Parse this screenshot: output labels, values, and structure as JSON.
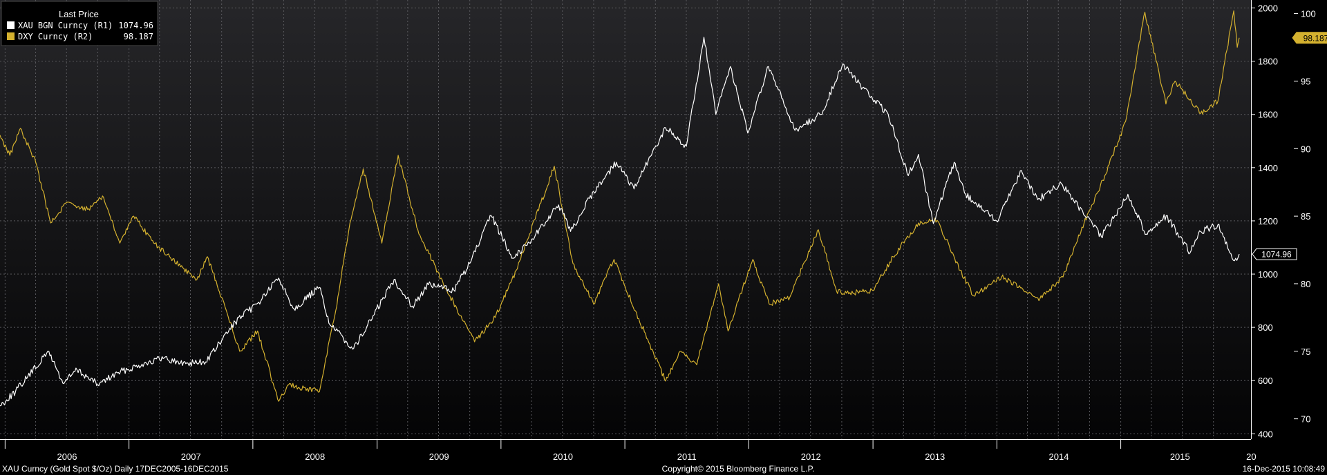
{
  "chart_data": {
    "type": "line",
    "legend": {
      "title": "Last Price",
      "placement": "top-left",
      "entries": [
        {
          "label": "XAU BGN Curncy  (R1)",
          "value": "1074.96",
          "color": "#ffffff"
        },
        {
          "label": "DXY Curncy  (R2)",
          "value": "98.187",
          "color": "#d4b12f"
        }
      ]
    },
    "x_axis": {
      "range": [
        "2005-12-17",
        "2015-12-16"
      ],
      "tick_labels": [
        "2006",
        "2007",
        "2008",
        "2009",
        "2010",
        "2011",
        "2012",
        "2013",
        "2014",
        "2015",
        "20"
      ]
    },
    "y_axis_r1": {
      "range": [
        380,
        2030
      ],
      "ticks": [
        400,
        600,
        800,
        1000,
        1200,
        1400,
        1600,
        1800,
        2000
      ]
    },
    "y_axis_r2": {
      "range": [
        68.5,
        101
      ],
      "ticks": [
        70,
        75,
        80,
        85,
        90,
        95,
        100
      ]
    },
    "grid": true,
    "series": [
      {
        "name": "XAU BGN Curncy",
        "axis": "R1",
        "color": "#ffffff",
        "last_value_label": "1074.96",
        "points": [
          [
            "2005-12-17",
            505
          ],
          [
            "2006-02-01",
            560
          ],
          [
            "2006-05-10",
            710
          ],
          [
            "2006-06-20",
            590
          ],
          [
            "2006-08-01",
            640
          ],
          [
            "2006-10-01",
            585
          ],
          [
            "2006-12-01",
            630
          ],
          [
            "2007-02-15",
            665
          ],
          [
            "2007-04-15",
            685
          ],
          [
            "2007-06-01",
            665
          ],
          [
            "2007-08-15",
            670
          ],
          [
            "2007-10-01",
            750
          ],
          [
            "2007-11-10",
            820
          ],
          [
            "2008-01-15",
            890
          ],
          [
            "2008-03-17",
            985
          ],
          [
            "2008-05-01",
            870
          ],
          [
            "2008-07-15",
            950
          ],
          [
            "2008-08-15",
            810
          ],
          [
            "2008-10-24",
            720
          ],
          [
            "2008-12-01",
            800
          ],
          [
            "2009-02-20",
            980
          ],
          [
            "2009-04-15",
            880
          ],
          [
            "2009-06-01",
            960
          ],
          [
            "2009-08-15",
            940
          ],
          [
            "2009-10-01",
            1040
          ],
          [
            "2009-12-03",
            1220
          ],
          [
            "2010-02-05",
            1060
          ],
          [
            "2010-04-01",
            1130
          ],
          [
            "2010-06-20",
            1260
          ],
          [
            "2010-07-25",
            1160
          ],
          [
            "2010-10-01",
            1310
          ],
          [
            "2010-12-07",
            1420
          ],
          [
            "2011-01-28",
            1320
          ],
          [
            "2011-05-01",
            1550
          ],
          [
            "2011-07-01",
            1480
          ],
          [
            "2011-08-22",
            1890
          ],
          [
            "2011-09-26",
            1600
          ],
          [
            "2011-11-08",
            1780
          ],
          [
            "2011-12-29",
            1530
          ],
          [
            "2012-02-28",
            1780
          ],
          [
            "2012-05-16",
            1540
          ],
          [
            "2012-08-01",
            1600
          ],
          [
            "2012-10-04",
            1790
          ],
          [
            "2012-12-01",
            1700
          ],
          [
            "2013-02-15",
            1600
          ],
          [
            "2013-04-15",
            1370
          ],
          [
            "2013-05-15",
            1450
          ],
          [
            "2013-06-28",
            1190
          ],
          [
            "2013-08-28",
            1420
          ],
          [
            "2013-10-01",
            1300
          ],
          [
            "2013-12-31",
            1200
          ],
          [
            "2014-03-14",
            1390
          ],
          [
            "2014-05-01",
            1280
          ],
          [
            "2014-07-10",
            1340
          ],
          [
            "2014-11-05",
            1140
          ],
          [
            "2015-01-22",
            1300
          ],
          [
            "2015-03-17",
            1150
          ],
          [
            "2015-05-15",
            1220
          ],
          [
            "2015-07-24",
            1080
          ],
          [
            "2015-08-24",
            1160
          ],
          [
            "2015-10-14",
            1185
          ],
          [
            "2015-11-15",
            1090
          ],
          [
            "2015-12-02",
            1050
          ],
          [
            "2015-12-16",
            1075
          ]
        ]
      },
      {
        "name": "DXY Curncy",
        "axis": "R2",
        "color": "#d4b12f",
        "last_value_label": "98.187",
        "points": [
          [
            "2005-12-17",
            91
          ],
          [
            "2006-01-15",
            89.5
          ],
          [
            "2006-02-15",
            91.5
          ],
          [
            "2006-04-01",
            89
          ],
          [
            "2006-05-15",
            84.5
          ],
          [
            "2006-07-01",
            86
          ],
          [
            "2006-09-01",
            85.5
          ],
          [
            "2006-10-15",
            86.5
          ],
          [
            "2006-12-05",
            83
          ],
          [
            "2007-01-15",
            85
          ],
          [
            "2007-03-15",
            83
          ],
          [
            "2007-05-01",
            82
          ],
          [
            "2007-07-20",
            80.3
          ],
          [
            "2007-08-20",
            82
          ],
          [
            "2007-10-01",
            79
          ],
          [
            "2007-11-23",
            75
          ],
          [
            "2008-01-15",
            76.5
          ],
          [
            "2008-03-17",
            71.3
          ],
          [
            "2008-04-15",
            72.5
          ],
          [
            "2008-07-15",
            72
          ],
          [
            "2008-09-01",
            78
          ],
          [
            "2008-10-10",
            84
          ],
          [
            "2008-11-21",
            88.5
          ],
          [
            "2009-01-15",
            83
          ],
          [
            "2009-03-04",
            89.5
          ],
          [
            "2009-05-01",
            84
          ],
          [
            "2009-07-15",
            80
          ],
          [
            "2009-10-15",
            75.7
          ],
          [
            "2009-12-15",
            77.5
          ],
          [
            "2010-02-15",
            81
          ],
          [
            "2010-06-07",
            88.7
          ],
          [
            "2010-08-01",
            81.5
          ],
          [
            "2010-10-01",
            78.5
          ],
          [
            "2010-11-30",
            81.8
          ],
          [
            "2011-02-01",
            78
          ],
          [
            "2011-05-01",
            72.8
          ],
          [
            "2011-06-15",
            75
          ],
          [
            "2011-08-01",
            74
          ],
          [
            "2011-10-04",
            80
          ],
          [
            "2011-11-01",
            76.5
          ],
          [
            "2012-01-13",
            81.8
          ],
          [
            "2012-03-01",
            78.5
          ],
          [
            "2012-05-01",
            79
          ],
          [
            "2012-07-24",
            84
          ],
          [
            "2012-09-15",
            79.5
          ],
          [
            "2012-10-15",
            79.3
          ],
          [
            "2013-01-01",
            79.5
          ],
          [
            "2013-03-01",
            82
          ],
          [
            "2013-05-15",
            84.5
          ],
          [
            "2013-07-09",
            84.7
          ],
          [
            "2013-09-15",
            81
          ],
          [
            "2013-10-25",
            79.1
          ],
          [
            "2014-01-15",
            80.5
          ],
          [
            "2014-03-15",
            79.7
          ],
          [
            "2014-05-08",
            78.9
          ],
          [
            "2014-07-15",
            80.5
          ],
          [
            "2014-09-15",
            84.5
          ],
          [
            "2014-11-15",
            88
          ],
          [
            "2015-01-15",
            92
          ],
          [
            "2015-03-13",
            100.1
          ],
          [
            "2015-05-14",
            93.3
          ],
          [
            "2015-06-10",
            95
          ],
          [
            "2015-08-24",
            92.6
          ],
          [
            "2015-10-14",
            93.5
          ],
          [
            "2015-11-30",
            100.2
          ],
          [
            "2015-12-10",
            97.5
          ],
          [
            "2015-12-16",
            98.2
          ]
        ]
      }
    ]
  },
  "footer": {
    "left": "XAU Curncy (Gold Spot  $/Oz)  Daily 17DEC2005-16DEC2015",
    "center": "Copyright© 2015 Bloomberg Finance L.P.",
    "right": "16-Dec-2015 10:08:49"
  }
}
